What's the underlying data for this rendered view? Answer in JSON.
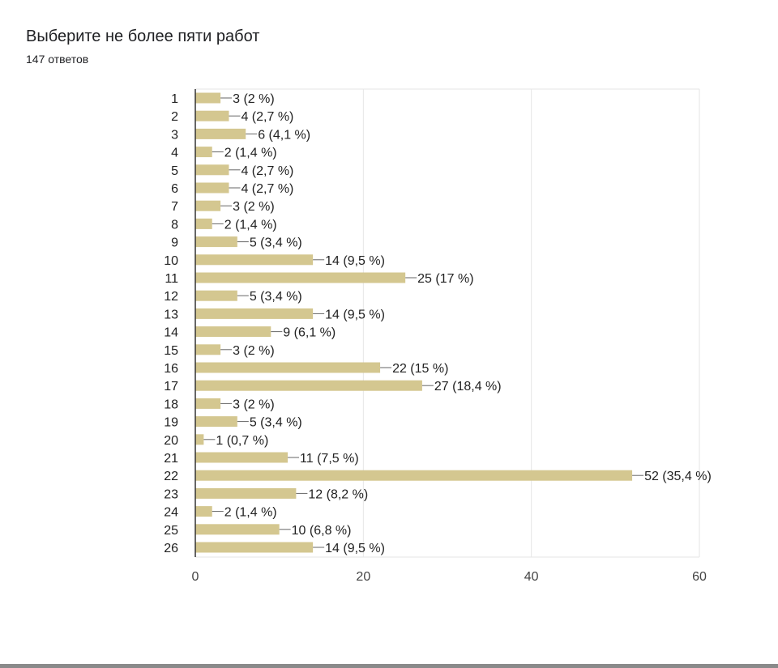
{
  "header": {
    "title": "Выберите не более пяти работ",
    "subtitle": "147 ответов"
  },
  "colors": {
    "bar": "#d4c790",
    "grid": "#e6e6e6",
    "axis": "#333333",
    "leader": "#666666"
  },
  "chart_data": {
    "type": "bar",
    "orientation": "horizontal",
    "title": "Выберите не более пяти работ",
    "subtitle": "147 ответов",
    "categories": [
      "1",
      "2",
      "3",
      "4",
      "5",
      "6",
      "7",
      "8",
      "9",
      "10",
      "11",
      "12",
      "13",
      "14",
      "15",
      "16",
      "17",
      "18",
      "19",
      "20",
      "21",
      "22",
      "23",
      "24",
      "25",
      "26"
    ],
    "values": [
      3,
      4,
      6,
      2,
      4,
      4,
      3,
      2,
      5,
      14,
      25,
      5,
      14,
      9,
      3,
      22,
      27,
      3,
      5,
      1,
      11,
      52,
      12,
      2,
      10,
      14
    ],
    "labels": [
      "3 (2 %)",
      "4 (2,7 %)",
      "6 (4,1 %)",
      "2 (1,4 %)",
      "4 (2,7 %)",
      "4 (2,7 %)",
      "3 (2 %)",
      "2 (1,4 %)",
      "5 (3,4 %)",
      "14 (9,5 %)",
      "25 (17 %)",
      "5 (3,4 %)",
      "14 (9,5 %)",
      "9 (6,1 %)",
      "3 (2 %)",
      "22 (15 %)",
      "27 (18,4 %)",
      "3 (2 %)",
      "5 (3,4 %)",
      "1 (0,7 %)",
      "11 (7,5 %)",
      "52 (35,4 %)",
      "12 (8,2 %)",
      "2 (1,4 %)",
      "10 (6,8 %)",
      "14 (9,5 %)"
    ],
    "xlim": [
      0,
      60
    ],
    "xticks": [
      "0",
      "20",
      "40",
      "60"
    ],
    "grid": true,
    "legend": "none"
  }
}
